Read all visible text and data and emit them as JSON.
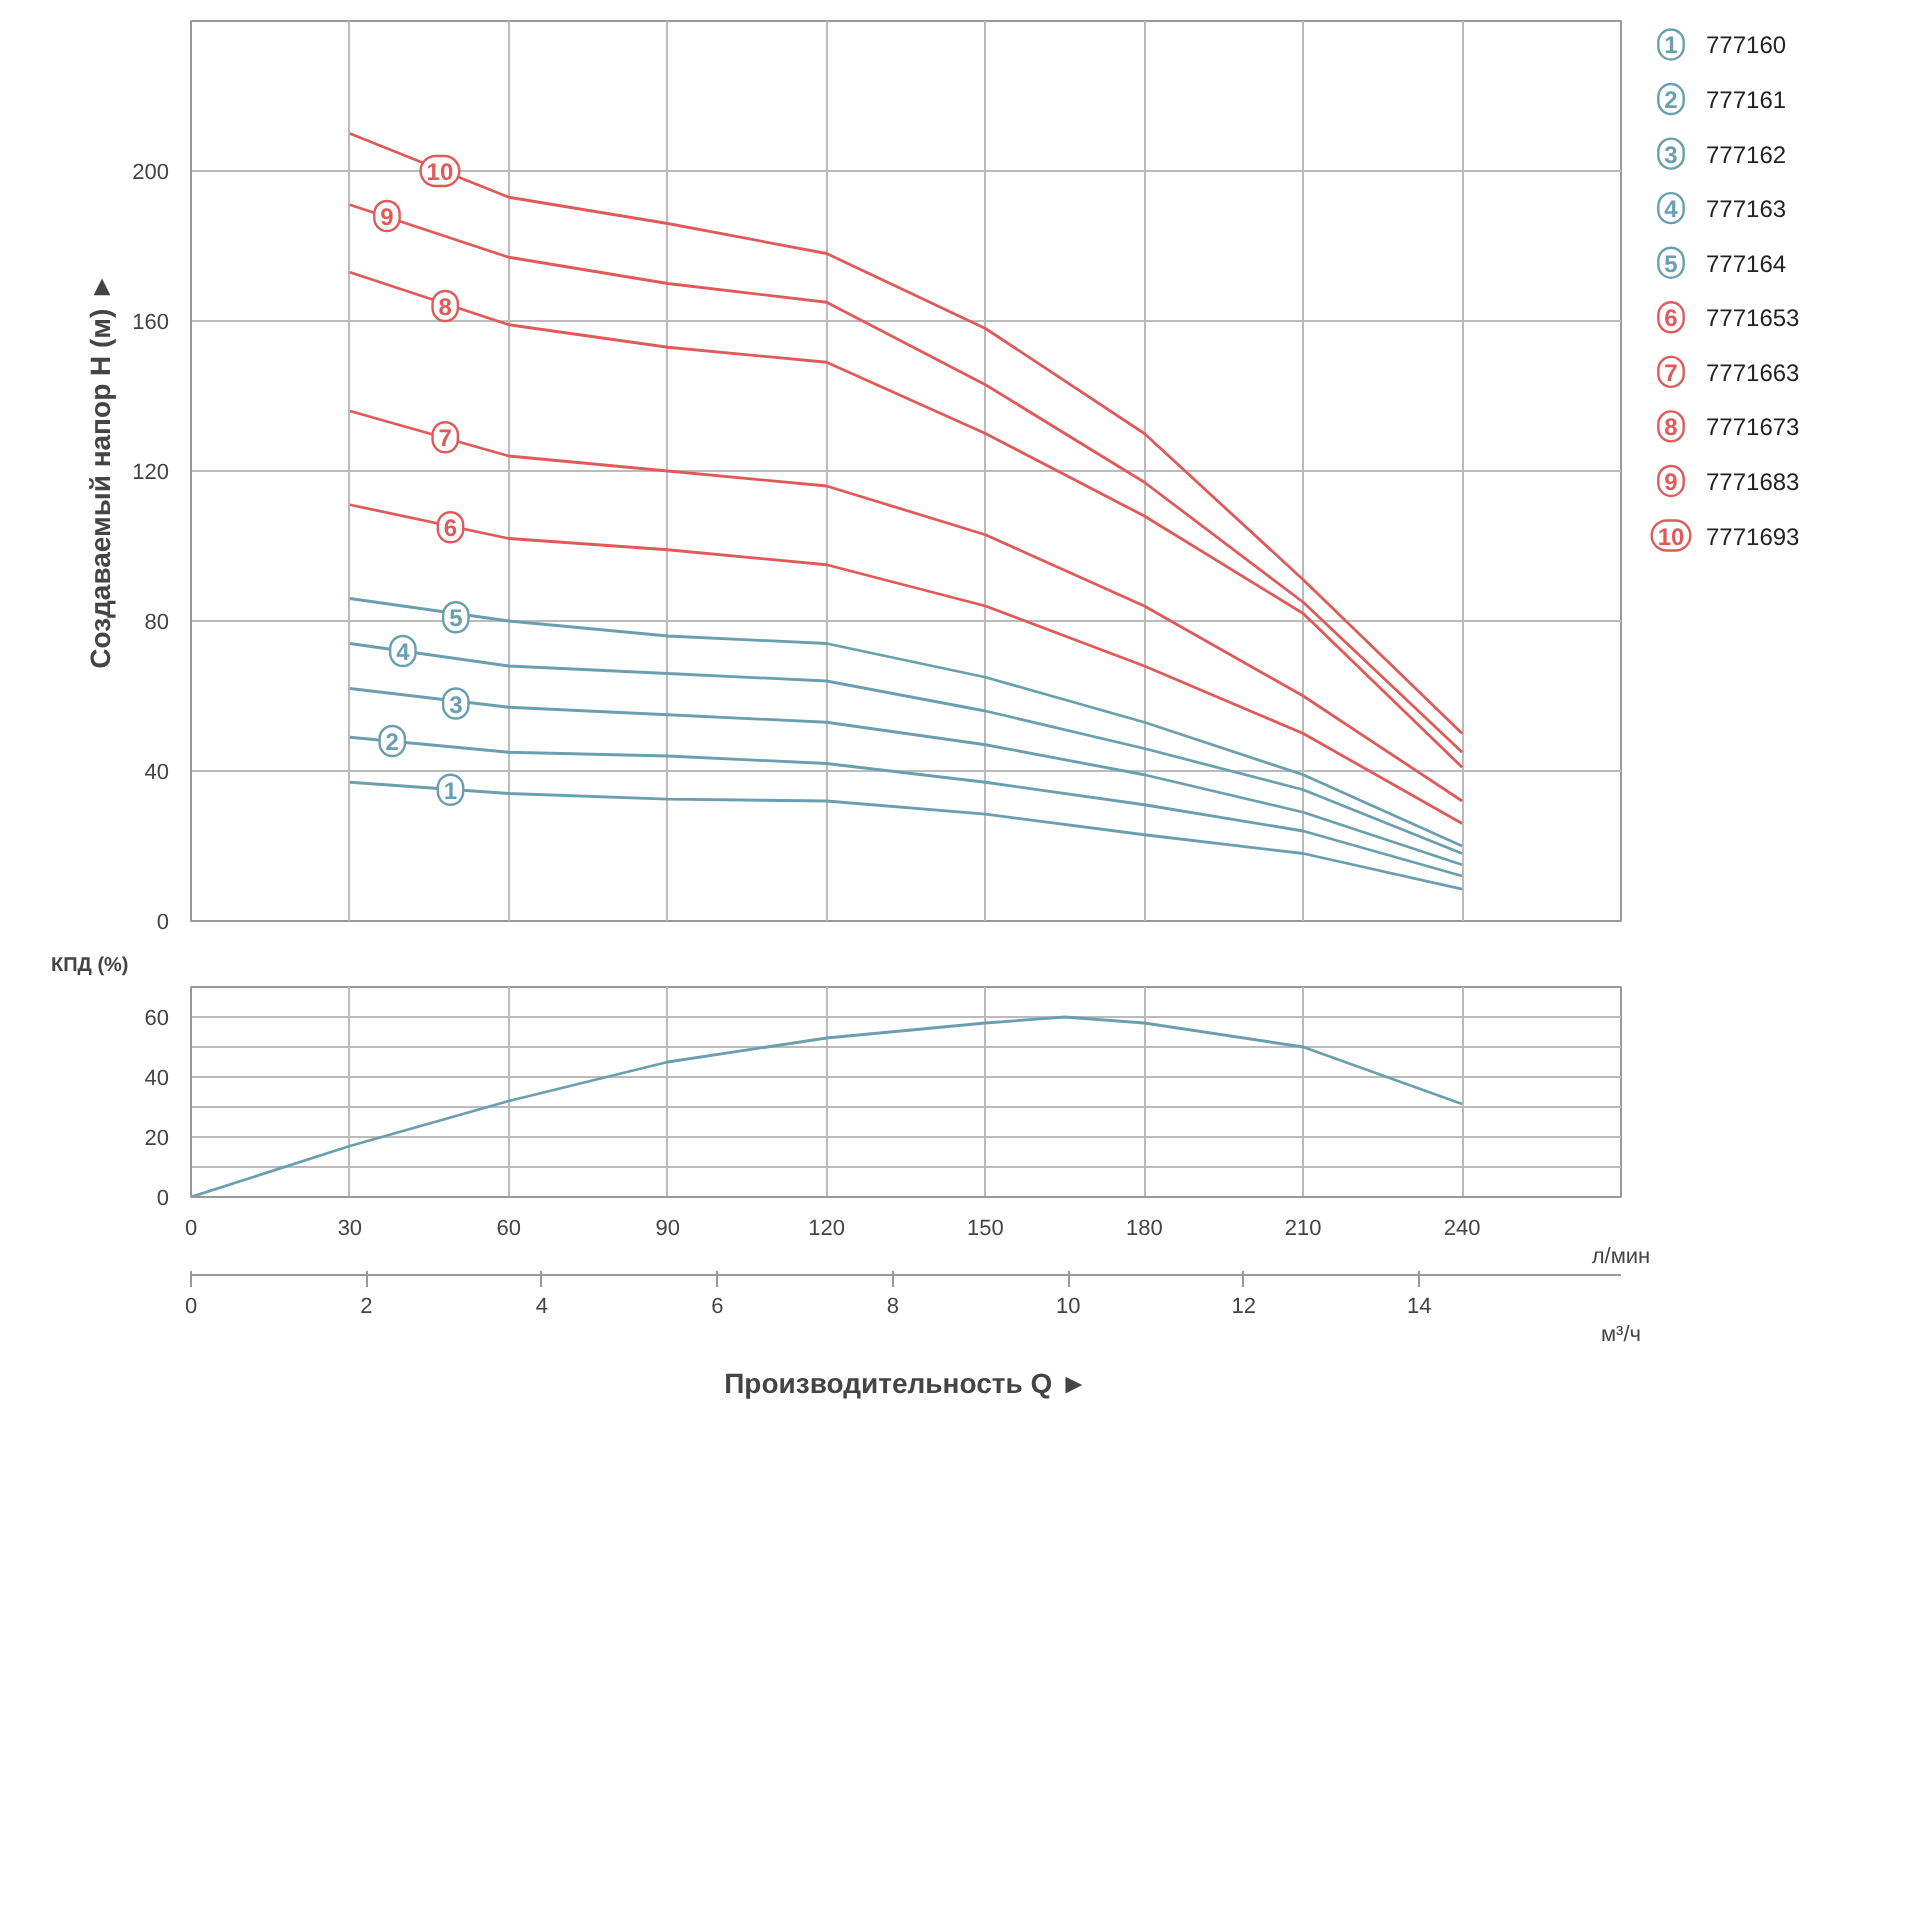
{
  "chart_data": [
    {
      "type": "line",
      "ylabel": "Создаваемый напор H (м) ►",
      "legend": "right",
      "grid": true,
      "tick_labels": "y",
      "xlim": [
        0,
        270
      ],
      "xticks": [
        {
          "value": 30,
          "label": null
        },
        {
          "value": 60,
          "label": null
        },
        {
          "value": 90,
          "label": null
        },
        {
          "value": 120,
          "label": null
        },
        {
          "value": 150,
          "label": null
        },
        {
          "value": 180,
          "label": null
        },
        {
          "value": 210,
          "label": null
        },
        {
          "value": 240,
          "label": null
        }
      ],
      "ylim": [
        0,
        240
      ],
      "yticks": [
        0,
        40,
        80,
        120,
        160,
        200
      ],
      "x": [
        30,
        60,
        90,
        120,
        150,
        180,
        210,
        240
      ],
      "series": [
        {
          "name": "777160",
          "color": "#6a9fb0",
          "values": [
            37,
            34,
            32.5,
            32,
            28.5,
            23,
            18,
            8.5
          ]
        },
        {
          "name": "777161",
          "color": "#6a9fb0",
          "values": [
            49,
            45,
            44,
            42,
            37,
            31,
            24,
            12
          ]
        },
        {
          "name": "777162",
          "color": "#6a9fb0",
          "values": [
            62,
            57,
            55,
            53,
            47,
            39,
            29,
            15
          ]
        },
        {
          "name": "777163",
          "color": "#6a9fb0",
          "values": [
            74,
            68,
            66,
            64,
            56,
            46,
            35,
            18
          ]
        },
        {
          "name": "777164",
          "color": "#6a9fb0",
          "values": [
            86,
            80,
            76,
            74,
            65,
            53,
            39,
            20
          ]
        },
        {
          "name": "7771653",
          "color": "#e05a5a",
          "values": [
            111,
            102,
            99,
            95,
            84,
            68,
            50,
            26
          ]
        },
        {
          "name": "7771663",
          "color": "#e05a5a",
          "values": [
            136,
            124,
            120,
            116,
            103,
            84,
            60,
            32
          ]
        },
        {
          "name": "7771673",
          "color": "#e05a5a",
          "values": [
            173,
            159,
            153,
            149,
            130,
            108,
            82,
            41
          ]
        },
        {
          "name": "7771683",
          "color": "#e05a5a",
          "values": [
            191,
            177,
            170,
            165,
            143,
            117,
            85,
            45
          ]
        },
        {
          "name": "7771693",
          "color": "#e05a5a",
          "values": [
            210,
            193,
            186,
            178,
            158,
            130,
            91,
            50
          ]
        }
      ],
      "annotations": [
        {
          "text": "1",
          "x": 49,
          "y": 35
        },
        {
          "text": "2",
          "x": 38,
          "y": 48
        },
        {
          "text": "3",
          "x": 50,
          "y": 58
        },
        {
          "text": "4",
          "x": 40,
          "y": 72
        },
        {
          "text": "5",
          "x": 50,
          "y": 81
        },
        {
          "text": "6",
          "x": 49,
          "y": 105
        },
        {
          "text": "7",
          "x": 48,
          "y": 129
        },
        {
          "text": "8",
          "x": 48,
          "y": 164
        },
        {
          "text": "9",
          "x": 37,
          "y": 188
        },
        {
          "text": "10",
          "x": 47,
          "y": 200
        }
      ]
    },
    {
      "type": "line",
      "ylabel": "КПД (%)",
      "xlabel": "Производительность Q ►",
      "grid": true,
      "xlim": [
        0,
        270
      ],
      "xticks": [
        0,
        30,
        60,
        90,
        120,
        150,
        180,
        210,
        240
      ],
      "x2lim": [
        0,
        16.3
      ],
      "x2ticks": [
        0,
        2,
        4,
        6,
        8,
        10,
        12,
        14
      ],
      "ylim": [
        0,
        70
      ],
      "yticks": [
        0,
        {
          "value": 10,
          "label": null
        },
        20,
        {
          "value": 30,
          "label": null
        },
        40,
        {
          "value": 50,
          "label": null
        },
        60
      ],
      "x": [
        0,
        30,
        60,
        90,
        120,
        150,
        165,
        180,
        210,
        240
      ],
      "series": [
        {
          "color": "#6a9fb0",
          "values": [
            0,
            17,
            32,
            45,
            53,
            58,
            60,
            58,
            50,
            31
          ]
        }
      ],
      "annotations": [
        "л/мин",
        "м³/ч"
      ]
    }
  ]
}
